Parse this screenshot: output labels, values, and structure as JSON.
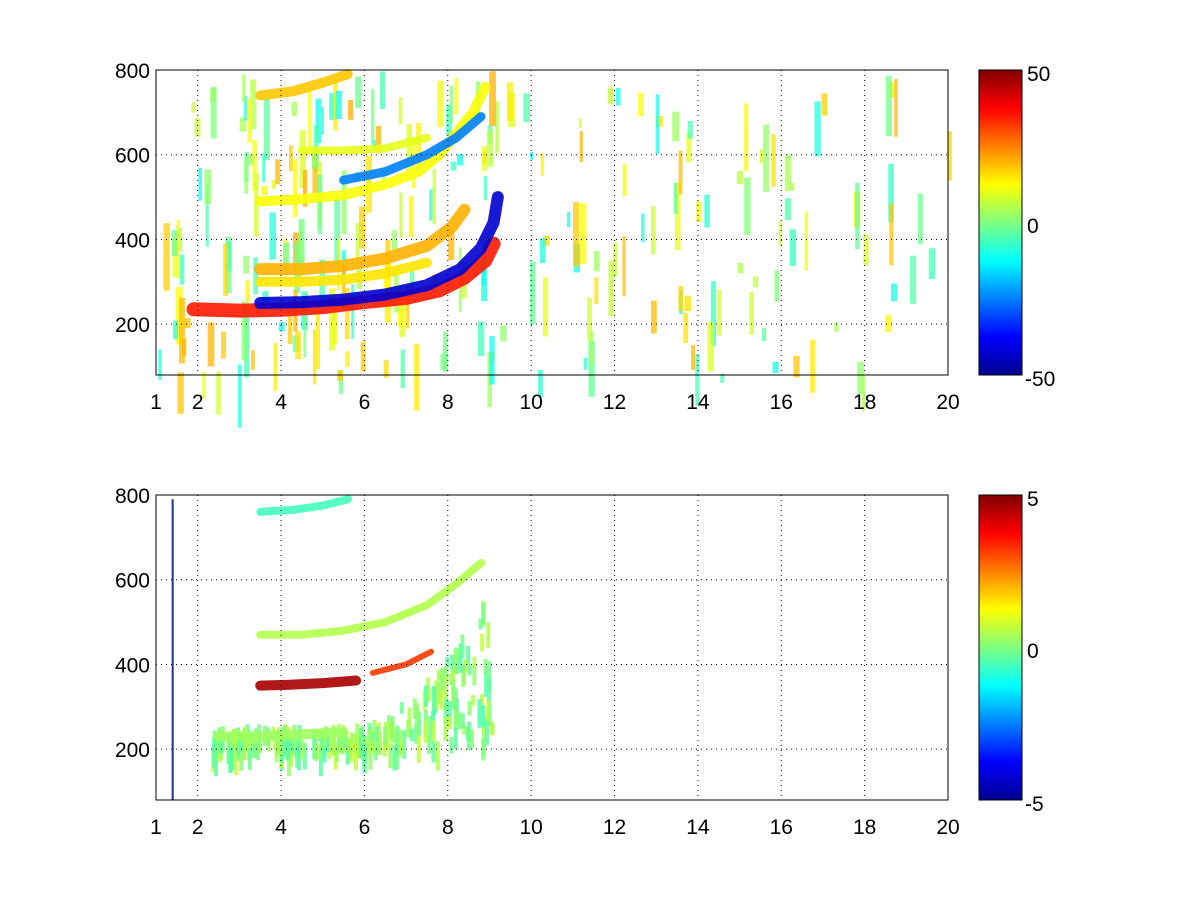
{
  "chart_data": [
    {
      "type": "heatmap",
      "title": "",
      "xlabel": "",
      "ylabel": "",
      "xlim": [
        1,
        20
      ],
      "ylim": [
        80,
        800
      ],
      "x_ticks": [
        "1",
        "2",
        "4",
        "6",
        "8",
        "10",
        "12",
        "14",
        "16",
        "18",
        "20"
      ],
      "y_ticks": [
        "200",
        "400",
        "600",
        "800"
      ],
      "grid": true,
      "colormap": "jet",
      "colorbar": {
        "min": -50,
        "max": 50,
        "ticks": [
          "50",
          "0",
          "-50"
        ]
      },
      "description_of_content": [],
      "features": [
        {
          "kind": "track",
          "points": [
            [
              1.9,
              235
            ],
            [
              3,
              232
            ],
            [
              4,
              234
            ],
            [
              5,
              240
            ],
            [
              6,
              252
            ],
            [
              7,
              262
            ],
            [
              7.8,
              280
            ],
            [
              8.4,
              310
            ],
            [
              8.9,
              350
            ],
            [
              9.1,
              390
            ]
          ],
          "value": 35,
          "width": 14
        },
        {
          "kind": "track",
          "points": [
            [
              3.5,
              250
            ],
            [
              4.5,
              252
            ],
            [
              5.5,
              258
            ],
            [
              6.5,
              270
            ],
            [
              7.5,
              292
            ],
            [
              8.3,
              330
            ],
            [
              8.8,
              380
            ],
            [
              9.1,
              440
            ],
            [
              9.2,
              500
            ]
          ],
          "value": -42,
          "width": 12
        },
        {
          "kind": "track",
          "points": [
            [
              3.5,
              330
            ],
            [
              4.5,
              330
            ],
            [
              5.5,
              338
            ],
            [
              6.5,
              355
            ],
            [
              7.5,
              385
            ],
            [
              8.1,
              430
            ],
            [
              8.4,
              470
            ]
          ],
          "value": 20,
          "width": 12
        },
        {
          "kind": "track",
          "points": [
            [
              3.5,
              300
            ],
            [
              4.5,
              300
            ],
            [
              5.5,
              305
            ],
            [
              6.5,
              320
            ],
            [
              7.5,
              345
            ]
          ],
          "value": 15,
          "width": 10
        },
        {
          "kind": "track",
          "points": [
            [
              3.5,
              490
            ],
            [
              4.5,
              495
            ],
            [
              5.5,
              505
            ],
            [
              6.5,
              530
            ],
            [
              7.3,
              560
            ],
            [
              7.8,
              600
            ],
            [
              8.2,
              650
            ],
            [
              8.6,
              700
            ],
            [
              8.9,
              760
            ]
          ],
          "value": 12,
          "width": 10
        },
        {
          "kind": "track",
          "points": [
            [
              5.5,
              540
            ],
            [
              6.5,
              560
            ],
            [
              7.5,
              600
            ],
            [
              8.2,
              640
            ],
            [
              8.8,
              690
            ]
          ],
          "value": -25,
          "width": 9
        },
        {
          "kind": "track",
          "points": [
            [
              3.5,
              740
            ],
            [
              4.3,
              750
            ],
            [
              5,
              770
            ],
            [
              5.6,
              790
            ]
          ],
          "value": 18,
          "width": 10
        },
        {
          "kind": "track",
          "points": [
            [
              4.5,
              610
            ],
            [
              5.5,
              610
            ],
            [
              6.5,
              615
            ],
            [
              7.5,
              640
            ]
          ],
          "value": 10,
          "width": 8
        }
      ]
    },
    {
      "type": "heatmap",
      "title": "",
      "xlabel": "",
      "ylabel": "",
      "xlim": [
        1,
        20
      ],
      "ylim": [
        80,
        800
      ],
      "x_ticks": [
        "1",
        "2",
        "4",
        "6",
        "8",
        "10",
        "12",
        "14",
        "16",
        "18",
        "20"
      ],
      "y_ticks": [
        "200",
        "400",
        "600",
        "800"
      ],
      "grid": true,
      "colormap": "jet",
      "colorbar": {
        "min": -5,
        "max": 5,
        "ticks": [
          "5",
          "0",
          "-5"
        ]
      },
      "features": [
        {
          "kind": "track",
          "points": [
            [
              3.5,
              350
            ],
            [
              4.2,
              352
            ],
            [
              5,
              356
            ],
            [
              5.8,
              362
            ]
          ],
          "value": 4.6,
          "width": 10
        },
        {
          "kind": "track",
          "points": [
            [
              6.2,
              380
            ],
            [
              7,
              400
            ],
            [
              7.6,
              430
            ]
          ],
          "value": 3.2,
          "width": 6
        },
        {
          "kind": "track",
          "points": [
            [
              2.5,
              230
            ],
            [
              3.5,
              230
            ],
            [
              4.5,
              235
            ],
            [
              5.5,
              240
            ]
          ],
          "value": 0.3,
          "width": 10
        },
        {
          "kind": "track",
          "points": [
            [
              3.5,
              470
            ],
            [
              4.5,
              470
            ],
            [
              5.5,
              480
            ],
            [
              6.5,
              500
            ],
            [
              7.5,
              540
            ],
            [
              8.2,
              590
            ],
            [
              8.8,
              640
            ]
          ],
          "value": 0.5,
          "width": 8
        },
        {
          "kind": "track",
          "points": [
            [
              3.5,
              760
            ],
            [
              4.3,
              765
            ],
            [
              5,
              775
            ],
            [
              5.6,
              790
            ]
          ],
          "value": -0.6,
          "width": 8
        }
      ]
    }
  ]
}
